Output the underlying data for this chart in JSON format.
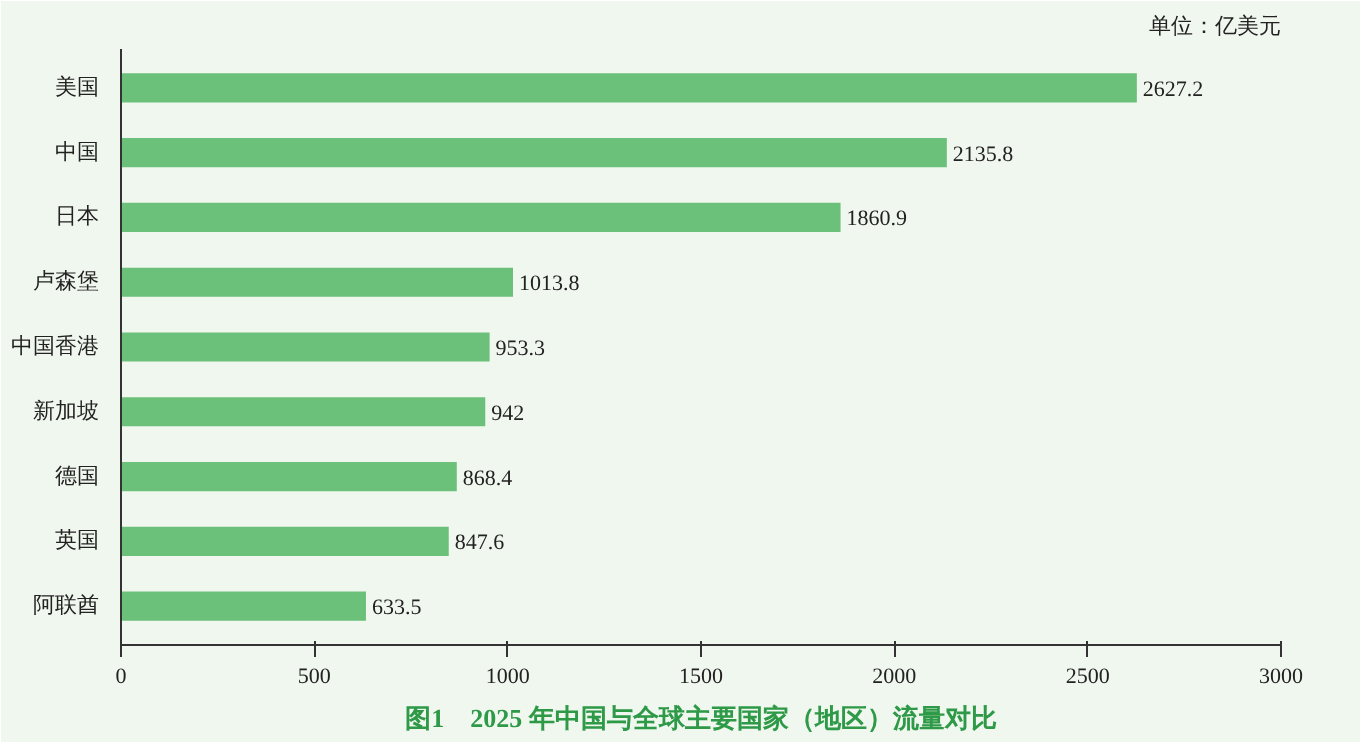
{
  "chart_data": {
    "type": "bar",
    "orientation": "horizontal",
    "title": "图1　2025 年中国与全球主要国家（地区）流量对比",
    "annotations": [
      "单位：亿美元"
    ],
    "categories": [
      "美国",
      "中国",
      "日本",
      "卢森堡",
      "中国香港",
      "新加坡",
      "德国",
      "英国",
      "阿联酋"
    ],
    "values": [
      2627.2,
      2135.8,
      1860.9,
      1013.8,
      953.3,
      942,
      868.4,
      847.6,
      633.5
    ],
    "color": "#6cc17a",
    "xlim": [
      0,
      3000
    ],
    "xticks": [
      0,
      500,
      1000,
      1500,
      2000,
      2500,
      3000
    ],
    "data_labels": true,
    "grid": false
  }
}
